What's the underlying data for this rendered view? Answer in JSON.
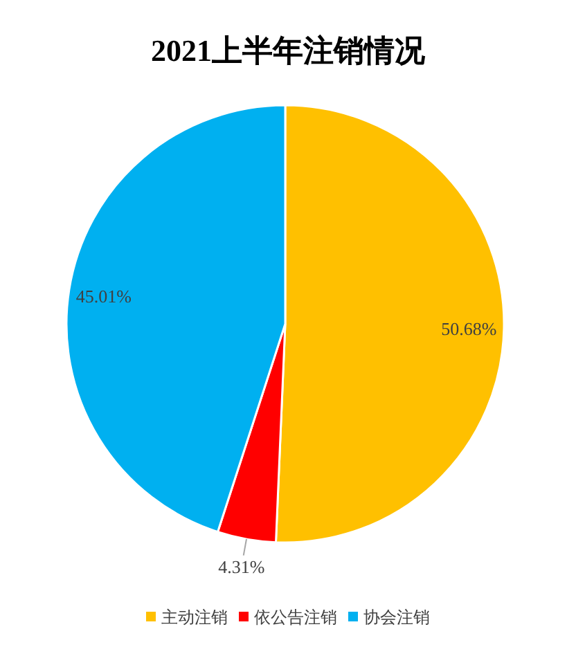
{
  "chart_data": {
    "type": "pie",
    "title": "2021上半年注销情况",
    "categories": [
      "主动注销",
      "依公告注销",
      "协会注销"
    ],
    "values": [
      50.68,
      4.31,
      45.01
    ],
    "colors": [
      "#ffc000",
      "#ff0000",
      "#00b0f0"
    ],
    "value_labels": [
      "50.68%",
      "4.31%",
      "45.01%"
    ],
    "legend": "bottom"
  }
}
